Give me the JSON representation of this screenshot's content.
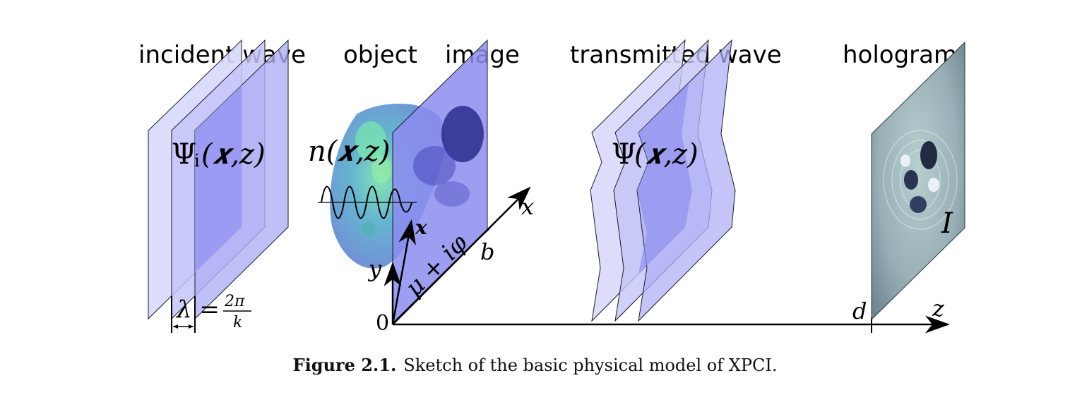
{
  "labels": {
    "incident_wave": "incident wave",
    "object": "object",
    "image": "image",
    "transmitted_wave": "transmitted wave",
    "hologram": "hologram"
  },
  "math": {
    "psi_i_main": "Ψ",
    "psi_i_sub": "i",
    "psi_i_args": "(𝒙,z)",
    "n_obj": "n(𝒙,z)",
    "psi_main": "Ψ",
    "psi_args": "(𝒙,z)",
    "lambda_lhs": "λ =",
    "lambda_num": "2π",
    "lambda_den": "k",
    "mu_phi": "μ + iφ",
    "x_vec": "𝒙",
    "x_axis": "x",
    "y_axis": "y",
    "z_axis": "z",
    "b": "b",
    "d": "d",
    "zero": "0",
    "I": "I"
  },
  "caption": {
    "label": "Figure 2.1.",
    "text": "Sketch of the basic physical model of XPCI."
  },
  "colors": {
    "plane_light": "#d8d8fb",
    "plane_mid": "#b4b4f6",
    "plane_dark": "#9898f2",
    "image_plane": "#8c8cf0",
    "hologram": "#9fb3ba",
    "axis": "#000000"
  }
}
